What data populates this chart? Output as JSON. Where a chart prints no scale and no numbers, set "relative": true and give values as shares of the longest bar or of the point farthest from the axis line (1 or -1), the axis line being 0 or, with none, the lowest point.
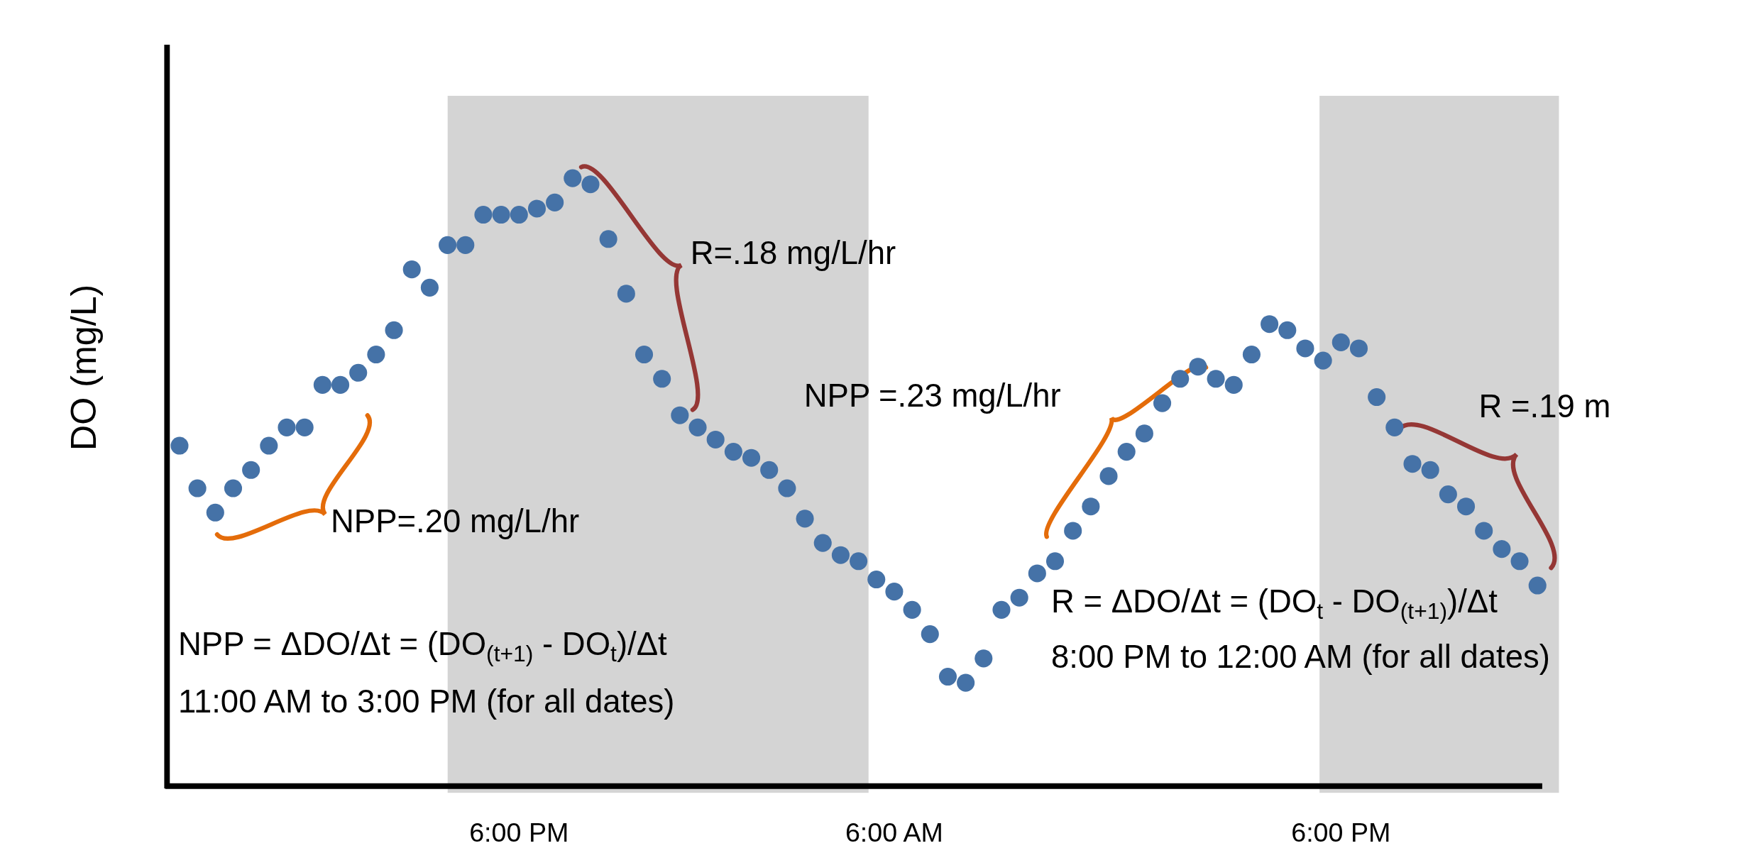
{
  "chart_data": {
    "type": "scatter",
    "ylabel": "DO (mg/L)",
    "relative": true,
    "marker": "circle",
    "grid": false,
    "categories": [
      null,
      null,
      null,
      null,
      null,
      null,
      null,
      null,
      null,
      null,
      null,
      null,
      null,
      null,
      null,
      null,
      null,
      null,
      null,
      "6:00 PM",
      null,
      null,
      null,
      null,
      null,
      null,
      null,
      null,
      null,
      null,
      null,
      null,
      null,
      null,
      null,
      null,
      null,
      null,
      null,
      null,
      "6:00 AM",
      null,
      null,
      null,
      null,
      null,
      null,
      null,
      null,
      null,
      null,
      null,
      null,
      null,
      null,
      null,
      null,
      null,
      null,
      null,
      null,
      null,
      null,
      null,
      null,
      "6:00 PM",
      null,
      null,
      null,
      null,
      null,
      null,
      null,
      null,
      null,
      null,
      null
    ],
    "series": [
      {
        "color": "#4572a7",
        "values": [
          0.56,
          0.49,
          0.45,
          0.49,
          0.52,
          0.56,
          0.59,
          0.59,
          0.66,
          0.66,
          0.68,
          0.71,
          0.75,
          0.85,
          0.82,
          0.89,
          0.89,
          0.94,
          0.94,
          0.94,
          0.95,
          0.96,
          1,
          0.99,
          0.9,
          0.81,
          0.71,
          0.67,
          0.61,
          0.59,
          0.57,
          0.55,
          0.54,
          0.52,
          0.49,
          0.44,
          0.4,
          0.38,
          0.37,
          0.34,
          0.32,
          0.29,
          0.25,
          0.18,
          0.17,
          0.21,
          0.29,
          0.31,
          0.35,
          0.37,
          0.42,
          0.46,
          0.51,
          0.55,
          0.58,
          0.63,
          0.67,
          0.69,
          0.67,
          0.66,
          0.71,
          0.76,
          0.75,
          0.72,
          0.7,
          0.73,
          0.72,
          0.64,
          0.59,
          0.53,
          0.52,
          0.48,
          0.46,
          0.42,
          0.39,
          0.37,
          0.33
        ]
      }
    ],
    "annotations": [
      "NPP=.20 mg/L/hr",
      "R=.18 mg/L/hr",
      "NPP =.23 mg/L/hr",
      "R =.19 m",
      "NPP = ΔDO/Δt = (DO$_{(t+1)}$ - DO$_{t}$)/Δt",
      "11:00 AM to 3:00 PM (for all dates)",
      "R = ΔDO/Δt = (DO$_{t}$ - DO$_{(t+1)}$)/Δt",
      "8:00 PM to 12:00 AM (for all dates)"
    ]
  }
}
